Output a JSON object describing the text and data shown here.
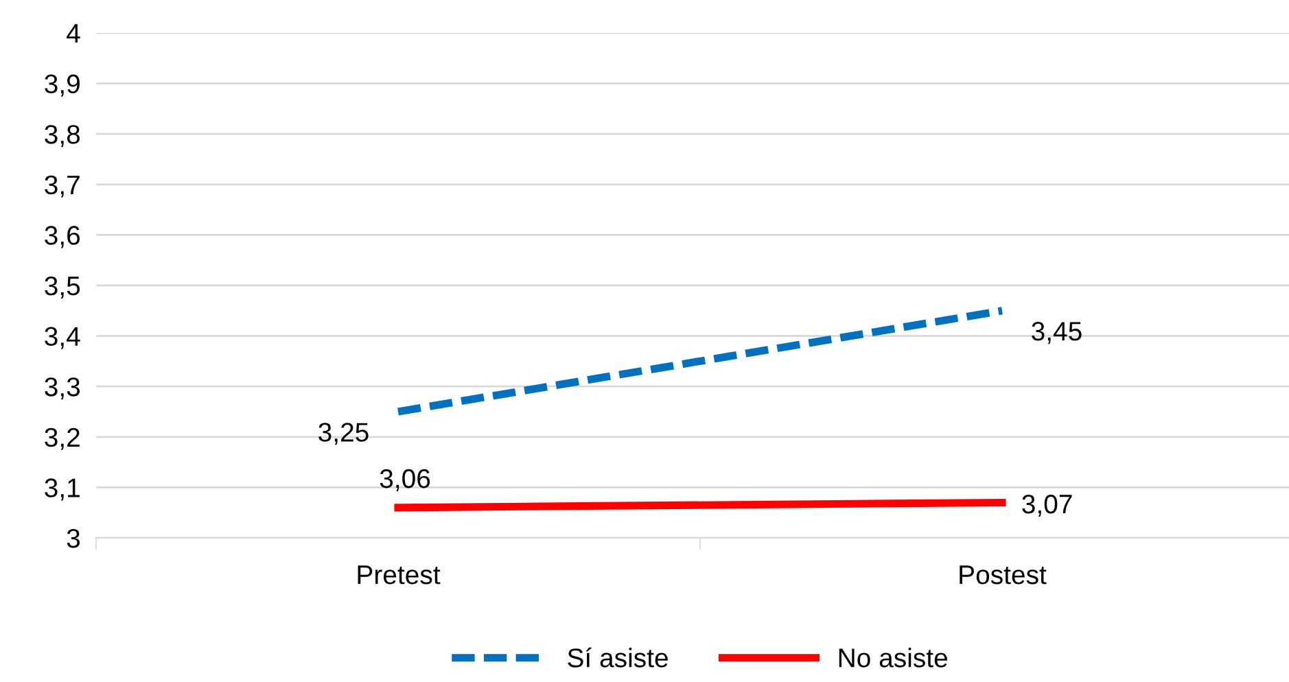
{
  "chart_data": {
    "type": "line",
    "categories": [
      "Pretest",
      "Postest"
    ],
    "series": [
      {
        "name": "Sí asiste",
        "color": "#0070c0",
        "values": [
          3.25,
          3.45
        ],
        "line_style": "dashed",
        "value_labels": [
          "3,25",
          "3,45"
        ]
      },
      {
        "name": "No asiste",
        "color": "#ff0000",
        "values": [
          3.06,
          3.07
        ],
        "line_style": "solid",
        "value_labels": [
          "3,06",
          "3,07"
        ]
      }
    ],
    "ylim": [
      3,
      4
    ],
    "yticks": [
      {
        "value": 3,
        "label": "3"
      },
      {
        "value": 3.1,
        "label": "3,1"
      },
      {
        "value": 3.2,
        "label": "3,2"
      },
      {
        "value": 3.3,
        "label": "3,3"
      },
      {
        "value": 3.4,
        "label": "3,4"
      },
      {
        "value": 3.5,
        "label": "3,5"
      },
      {
        "value": 3.6,
        "label": "3,6"
      },
      {
        "value": 3.7,
        "label": "3,7"
      },
      {
        "value": 3.8,
        "label": "3,8"
      },
      {
        "value": 3.9,
        "label": "3,9"
      },
      {
        "value": 4,
        "label": "4"
      }
    ],
    "grid": "y",
    "legend": "bottom",
    "marker": "none"
  }
}
